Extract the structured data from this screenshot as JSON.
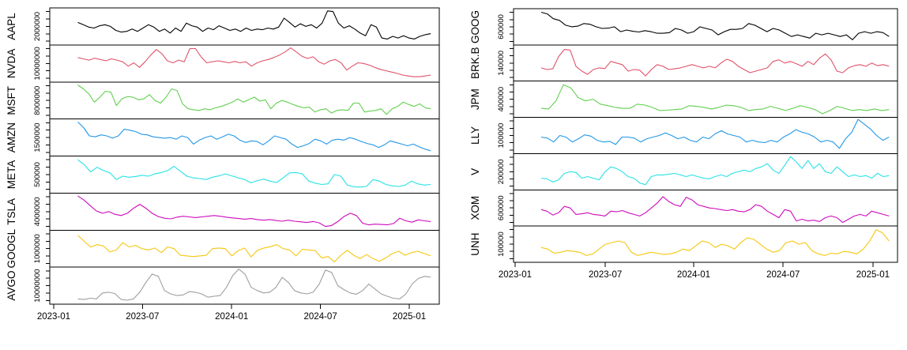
{
  "figure": {
    "background": "#ffffff",
    "description": "Two multi-panel stacked time-series plots of stock volume-like series, R base graphics style",
    "x_axis_range": [
      "2023-01",
      "2025-01"
    ]
  },
  "chart_data": [
    {
      "id": "left-plot",
      "type": "line",
      "title": "",
      "xlabel": "",
      "ylabel": "",
      "grid": false,
      "legend": "none",
      "x_tick_labels": [
        "2023-01",
        "2023-07",
        "2024-01",
        "2024-07",
        "2025-01"
      ],
      "value_scale": "normalized-panel-fraction (0=panel bottom, 1=panel top)",
      "panels": [
        {
          "ticker": "AAPL",
          "color": "#000000",
          "y_tick_label": "2000000",
          "values": [
            0.62,
            0.55,
            0.48,
            0.45,
            0.52,
            0.55,
            0.5,
            0.38,
            0.33,
            0.35,
            0.42,
            0.35,
            0.45,
            0.55,
            0.48,
            0.35,
            0.42,
            0.3,
            0.45,
            0.35,
            0.6,
            0.52,
            0.48,
            0.35,
            0.45,
            0.4,
            0.52,
            0.45,
            0.38,
            0.42,
            0.35,
            0.45,
            0.38,
            0.42,
            0.4,
            0.45,
            0.42,
            0.48,
            0.75,
            0.62,
            0.48,
            0.58,
            0.5,
            0.55,
            0.45,
            0.6,
            0.97,
            0.95,
            0.6,
            0.45,
            0.52,
            0.42,
            0.3,
            0.22,
            0.55,
            0.48,
            0.15,
            0.12,
            0.2,
            0.15,
            0.22,
            0.15,
            0.12,
            0.2,
            0.25,
            0.28
          ]
        },
        {
          "ticker": "NVDA",
          "color": "#DF536B",
          "y_tick_label": "10000000",
          "values": [
            0.68,
            0.64,
            0.6,
            0.66,
            0.62,
            0.58,
            0.64,
            0.6,
            0.55,
            0.42,
            0.52,
            0.38,
            0.55,
            0.75,
            0.92,
            0.8,
            0.58,
            0.52,
            0.6,
            0.55,
            0.95,
            0.95,
            0.7,
            0.52,
            0.55,
            0.58,
            0.55,
            0.52,
            0.56,
            0.52,
            0.55,
            0.42,
            0.52,
            0.58,
            0.62,
            0.68,
            0.75,
            0.85,
            0.97,
            0.85,
            0.72,
            0.65,
            0.7,
            0.55,
            0.48,
            0.58,
            0.62,
            0.52,
            0.3,
            0.42,
            0.52,
            0.5,
            0.45,
            0.38,
            0.32,
            0.28,
            0.24,
            0.2,
            0.15,
            0.12,
            0.1,
            0.1,
            0.12,
            0.15
          ]
        },
        {
          "ticker": "MSFT",
          "color": "#61D04F",
          "y_tick_label": "8000000",
          "values": [
            0.97,
            0.85,
            0.7,
            0.45,
            0.6,
            0.78,
            0.75,
            0.35,
            0.55,
            0.62,
            0.6,
            0.52,
            0.55,
            0.68,
            0.5,
            0.42,
            0.6,
            0.85,
            0.8,
            0.4,
            0.25,
            0.22,
            0.2,
            0.25,
            0.22,
            0.28,
            0.32,
            0.38,
            0.45,
            0.55,
            0.45,
            0.52,
            0.6,
            0.48,
            0.52,
            0.25,
            0.42,
            0.5,
            0.45,
            0.38,
            0.32,
            0.28,
            0.3,
            0.15,
            0.22,
            0.25,
            0.12,
            0.2,
            0.22,
            0.2,
            0.42,
            0.42,
            0.15,
            0.18,
            0.2,
            0.25,
            0.08,
            0.25,
            0.32,
            0.45,
            0.38,
            0.32,
            0.4,
            0.28,
            0.25
          ]
        },
        {
          "ticker": "AMZN",
          "color": "#2297E6",
          "y_tick_label": "1500000",
          "values": [
            0.97,
            0.8,
            0.55,
            0.52,
            0.58,
            0.55,
            0.48,
            0.55,
            0.75,
            0.72,
            0.68,
            0.6,
            0.58,
            0.52,
            0.5,
            0.48,
            0.5,
            0.45,
            0.55,
            0.5,
            0.3,
            0.42,
            0.5,
            0.55,
            0.45,
            0.52,
            0.6,
            0.55,
            0.42,
            0.35,
            0.4,
            0.38,
            0.28,
            0.4,
            0.55,
            0.5,
            0.45,
            0.3,
            0.2,
            0.25,
            0.32,
            0.45,
            0.4,
            0.3,
            0.42,
            0.45,
            0.42,
            0.5,
            0.45,
            0.38,
            0.32,
            0.28,
            0.2,
            0.28,
            0.4,
            0.35,
            0.3,
            0.25,
            0.3,
            0.22,
            0.15,
            0.1
          ]
        },
        {
          "ticker": "META",
          "color": "#28E2E5",
          "y_tick_label": "500000",
          "values": [
            0.95,
            0.8,
            0.58,
            0.72,
            0.62,
            0.55,
            0.35,
            0.45,
            0.42,
            0.44,
            0.48,
            0.45,
            0.52,
            0.56,
            0.62,
            0.75,
            0.6,
            0.45,
            0.4,
            0.38,
            0.35,
            0.42,
            0.46,
            0.52,
            0.46,
            0.4,
            0.35,
            0.25,
            0.32,
            0.36,
            0.3,
            0.26,
            0.4,
            0.55,
            0.56,
            0.52,
            0.3,
            0.24,
            0.2,
            0.22,
            0.5,
            0.45,
            0.18,
            0.13,
            0.12,
            0.14,
            0.35,
            0.3,
            0.2,
            0.16,
            0.14,
            0.18,
            0.3,
            0.22,
            0.18,
            0.2
          ]
        },
        {
          "ticker": "TSLA",
          "color": "#CD0BBC",
          "y_tick_label": "4000000",
          "values": [
            0.97,
            0.85,
            0.68,
            0.52,
            0.45,
            0.5,
            0.42,
            0.38,
            0.45,
            0.6,
            0.72,
            0.6,
            0.45,
            0.35,
            0.3,
            0.28,
            0.33,
            0.36,
            0.34,
            0.32,
            0.34,
            0.36,
            0.38,
            0.36,
            0.33,
            0.31,
            0.29,
            0.27,
            0.29,
            0.26,
            0.24,
            0.26,
            0.23,
            0.21,
            0.24,
            0.21,
            0.19,
            0.17,
            0.2,
            0.16,
            0.05,
            0.08,
            0.2,
            0.35,
            0.45,
            0.38,
            0.15,
            0.1,
            0.12,
            0.11,
            0.1,
            0.14,
            0.3,
            0.22,
            0.18,
            0.25,
            0.22,
            0.2
          ]
        },
        {
          "ticker": "GOOGL",
          "color": "#F5C710",
          "y_tick_label": "1000000",
          "values": [
            0.9,
            0.72,
            0.55,
            0.62,
            0.58,
            0.4,
            0.46,
            0.68,
            0.55,
            0.6,
            0.5,
            0.46,
            0.52,
            0.38,
            0.55,
            0.5,
            0.3,
            0.28,
            0.26,
            0.28,
            0.3,
            0.5,
            0.52,
            0.5,
            0.28,
            0.44,
            0.52,
            0.25,
            0.45,
            0.52,
            0.56,
            0.62,
            0.5,
            0.46,
            0.28,
            0.48,
            0.46,
            0.44,
            0.22,
            0.26,
            0.1,
            0.3,
            0.45,
            0.3,
            0.2,
            0.32,
            0.2,
            0.12,
            0.22,
            0.35,
            0.42,
            0.3,
            0.38,
            0.42,
            0.35,
            0.28
          ]
        },
        {
          "ticker": "AVGO",
          "color": "#9E9E9E",
          "y_tick_label": "10000000",
          "values": [
            0.1,
            0.08,
            0.12,
            0.1,
            0.28,
            0.3,
            0.26,
            0.08,
            0.06,
            0.1,
            0.3,
            0.6,
            0.85,
            0.78,
            0.35,
            0.25,
            0.2,
            0.22,
            0.32,
            0.3,
            0.25,
            0.15,
            0.18,
            0.2,
            0.45,
            0.8,
            1.0,
            0.85,
            0.45,
            0.35,
            0.28,
            0.3,
            0.45,
            0.75,
            0.6,
            0.35,
            0.28,
            0.25,
            0.3,
            0.55,
            0.97,
            0.9,
            0.5,
            0.38,
            0.28,
            0.24,
            0.35,
            0.55,
            0.4,
            0.25,
            0.18,
            0.12,
            0.1,
            0.25,
            0.55,
            0.72,
            0.78,
            0.76
          ]
        }
      ]
    },
    {
      "id": "right-plot",
      "type": "line",
      "title": "",
      "xlabel": "",
      "ylabel": "",
      "grid": false,
      "legend": "none",
      "x_tick_labels": [
        "2023-01",
        "2023-07",
        "2024-01",
        "2024-07",
        "2025-01"
      ],
      "value_scale": "normalized-panel-fraction (0=panel bottom, 1=panel top)",
      "panels": [
        {
          "ticker": "GOOG",
          "color": "#000000",
          "y_tick_label": "600000",
          "values": [
            0.95,
            0.9,
            0.75,
            0.7,
            0.55,
            0.5,
            0.52,
            0.6,
            0.58,
            0.5,
            0.45,
            0.46,
            0.5,
            0.35,
            0.4,
            0.36,
            0.34,
            0.38,
            0.35,
            0.3,
            0.3,
            0.32,
            0.45,
            0.4,
            0.3,
            0.35,
            0.5,
            0.45,
            0.4,
            0.25,
            0.35,
            0.42,
            0.42,
            0.45,
            0.6,
            0.55,
            0.45,
            0.35,
            0.45,
            0.4,
            0.3,
            0.2,
            0.25,
            0.2,
            0.15,
            0.3,
            0.25,
            0.3,
            0.25,
            0.2,
            0.25,
            0.1,
            0.3,
            0.35,
            0.3,
            0.35,
            0.32,
            0.2
          ]
        },
        {
          "ticker": "BRK.B",
          "color": "#DF536B",
          "y_tick_label": "140000",
          "values": [
            0.35,
            0.3,
            0.32,
            0.7,
            0.92,
            0.9,
            0.4,
            0.25,
            0.15,
            0.3,
            0.35,
            0.33,
            0.55,
            0.5,
            0.45,
            0.25,
            0.3,
            0.28,
            0.1,
            0.3,
            0.45,
            0.4,
            0.3,
            0.32,
            0.35,
            0.4,
            0.45,
            0.4,
            0.35,
            0.4,
            0.35,
            0.5,
            0.62,
            0.55,
            0.4,
            0.3,
            0.2,
            0.25,
            0.3,
            0.35,
            0.55,
            0.6,
            0.5,
            0.55,
            0.48,
            0.4,
            0.55,
            0.45,
            0.65,
            0.78,
            0.6,
            0.25,
            0.2,
            0.35,
            0.42,
            0.45,
            0.4,
            0.5,
            0.42,
            0.45,
            0.4
          ]
        },
        {
          "ticker": "JPM",
          "color": "#61D04F",
          "y_tick_label": "400000",
          "values": [
            0.22,
            0.2,
            0.45,
            0.95,
            0.85,
            0.55,
            0.45,
            0.5,
            0.35,
            0.3,
            0.25,
            0.22,
            0.22,
            0.35,
            0.32,
            0.25,
            0.15,
            0.16,
            0.18,
            0.2,
            0.3,
            0.28,
            0.25,
            0.2,
            0.25,
            0.32,
            0.3,
            0.25,
            0.15,
            0.18,
            0.2,
            0.28,
            0.22,
            0.15,
            0.22,
            0.3,
            0.25,
            0.18,
            0.05,
            0.15,
            0.28,
            0.22,
            0.15,
            0.18,
            0.15,
            0.2,
            0.15,
            0.18
          ]
        },
        {
          "ticker": "LLY",
          "color": "#2297E6",
          "y_tick_label": "100000",
          "values": [
            0.45,
            0.42,
            0.3,
            0.5,
            0.45,
            0.3,
            0.4,
            0.52,
            0.48,
            0.35,
            0.3,
            0.32,
            0.22,
            0.45,
            0.45,
            0.42,
            0.3,
            0.4,
            0.45,
            0.5,
            0.58,
            0.5,
            0.4,
            0.45,
            0.35,
            0.3,
            0.45,
            0.4,
            0.55,
            0.65,
            0.55,
            0.5,
            0.45,
            0.3,
            0.35,
            0.3,
            0.28,
            0.35,
            0.3,
            0.45,
            0.55,
            0.68,
            0.6,
            0.55,
            0.45,
            0.3,
            0.35,
            0.3,
            0.1,
            0.4,
            0.6,
            1.0,
            0.85,
            0.7,
            0.5,
            0.35,
            0.45
          ]
        },
        {
          "ticker": "V",
          "color": "#28E2E5",
          "y_tick_label": "200000",
          "values": [
            0.3,
            0.28,
            0.18,
            0.25,
            0.45,
            0.5,
            0.48,
            0.3,
            0.35,
            0.3,
            0.25,
            0.5,
            0.65,
            0.6,
            0.5,
            0.35,
            0.3,
            0.15,
            0.1,
            0.35,
            0.4,
            0.4,
            0.42,
            0.45,
            0.4,
            0.35,
            0.4,
            0.35,
            0.3,
            0.28,
            0.35,
            0.4,
            0.35,
            0.45,
            0.5,
            0.55,
            0.5,
            0.6,
            0.65,
            0.75,
            0.55,
            0.45,
            0.7,
            0.97,
            0.8,
            0.6,
            0.85,
            0.6,
            0.75,
            0.5,
            0.45,
            0.65,
            0.5,
            0.35,
            0.4,
            0.35,
            0.38,
            0.3,
            0.45,
            0.35,
            0.38
          ]
        },
        {
          "ticker": "XOM",
          "color": "#CD0BBC",
          "y_tick_label": "600000",
          "values": [
            0.45,
            0.4,
            0.28,
            0.35,
            0.55,
            0.5,
            0.3,
            0.32,
            0.35,
            0.3,
            0.28,
            0.25,
            0.4,
            0.38,
            0.42,
            0.35,
            0.3,
            0.25,
            0.35,
            0.5,
            0.65,
            0.85,
            0.7,
            0.6,
            0.55,
            0.83,
            0.75,
            0.6,
            0.55,
            0.5,
            0.48,
            0.45,
            0.42,
            0.45,
            0.4,
            0.38,
            0.45,
            0.6,
            0.55,
            0.4,
            0.3,
            0.2,
            0.45,
            0.4,
            0.1,
            0.15,
            0.1,
            0.12,
            0.08,
            0.2,
            0.25,
            0.2,
            0.05,
            0.15,
            0.25,
            0.3,
            0.25,
            0.4,
            0.35,
            0.3,
            0.25
          ]
        },
        {
          "ticker": "UNH",
          "color": "#F5C710",
          "y_tick_label": "100000",
          "values": [
            0.4,
            0.35,
            0.22,
            0.25,
            0.3,
            0.28,
            0.25,
            0.15,
            0.2,
            0.35,
            0.5,
            0.55,
            0.6,
            0.55,
            0.25,
            0.15,
            0.2,
            0.25,
            0.22,
            0.18,
            0.2,
            0.25,
            0.35,
            0.3,
            0.45,
            0.6,
            0.55,
            0.4,
            0.5,
            0.45,
            0.35,
            0.55,
            0.7,
            0.65,
            0.5,
            0.35,
            0.25,
            0.3,
            0.55,
            0.6,
            0.5,
            0.55,
            0.3,
            0.2,
            0.15,
            0.22,
            0.2,
            0.28,
            0.25,
            0.2,
            0.35,
            0.6,
            0.95,
            0.85,
            0.6
          ]
        }
      ]
    }
  ]
}
